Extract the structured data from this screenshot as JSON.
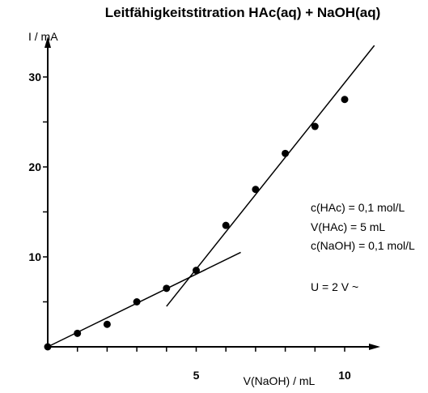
{
  "chart_data": {
    "type": "scatter",
    "title": "Leitfähigkeitstitration HAc(aq) + NaOH(aq)",
    "xlabel": "V(NaOH) / mL",
    "ylabel": "I / mA",
    "xlim": [
      0,
      11
    ],
    "ylim": [
      0,
      34
    ],
    "x_ticks": [
      1,
      2,
      3,
      4,
      5,
      6,
      7,
      8,
      9,
      10
    ],
    "x_tick_labels": [
      {
        "value": 5,
        "label": "5"
      },
      {
        "value": 10,
        "label": "10"
      }
    ],
    "y_ticks": [
      5,
      10,
      15,
      20,
      25,
      30
    ],
    "y_tick_labels": [
      {
        "value": 10,
        "label": "10"
      },
      {
        "value": 20,
        "label": "20"
      },
      {
        "value": 30,
        "label": "30"
      }
    ],
    "grid": false,
    "points": [
      {
        "x": 0,
        "y": 0
      },
      {
        "x": 1,
        "y": 1.5
      },
      {
        "x": 2,
        "y": 2.5
      },
      {
        "x": 3,
        "y": 5
      },
      {
        "x": 4,
        "y": 6.5
      },
      {
        "x": 5,
        "y": 8.5
      },
      {
        "x": 6,
        "y": 13.5
      },
      {
        "x": 7,
        "y": 17.5
      },
      {
        "x": 8,
        "y": 21.5
      },
      {
        "x": 9,
        "y": 24.5
      },
      {
        "x": 10,
        "y": 27.5
      }
    ],
    "fit_lines": [
      {
        "from": {
          "x": 0,
          "y": 0
        },
        "to": {
          "x": 6.5,
          "y": 10.5
        }
      },
      {
        "from": {
          "x": 4,
          "y": 4.5
        },
        "to": {
          "x": 11,
          "y": 33.5
        }
      }
    ],
    "annotations": [
      "c(HAc) = 0,1 mol/L",
      "V(HAc) = 5 mL",
      "c(NaOH) = 0,1 mol/L",
      "U = 2 V ~"
    ],
    "colors": {
      "marks": "#000000",
      "background": "#ffffff"
    }
  }
}
